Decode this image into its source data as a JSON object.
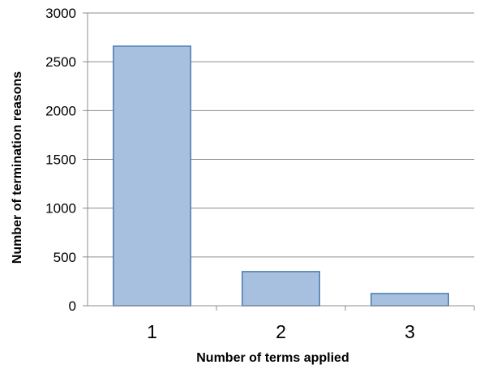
{
  "chart_data": {
    "type": "bar",
    "categories": [
      "1",
      "2",
      "3"
    ],
    "values": [
      2660,
      350,
      125
    ],
    "xlabel": "Number of terms applied",
    "ylabel": "Number of termination reasons",
    "ylim": [
      0,
      3000
    ],
    "yticks": [
      0,
      500,
      1000,
      1500,
      2000,
      2500,
      3000
    ],
    "grid": true,
    "bar_color": "#a7c0e0",
    "bar_edge_color": "#4a7ab5"
  }
}
